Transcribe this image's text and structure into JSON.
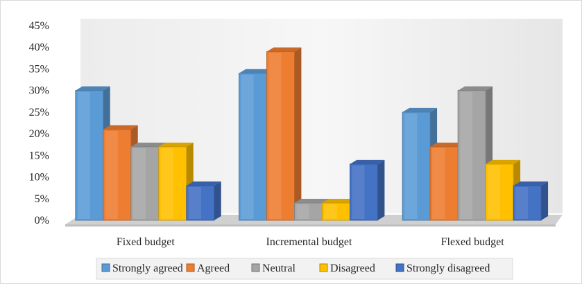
{
  "chart_data": {
    "type": "bar",
    "title": "",
    "xlabel": "",
    "ylabel": "",
    "ylim": [
      0,
      45
    ],
    "y_ticks": [
      "0%",
      "5%",
      "10%",
      "15%",
      "20%",
      "25%",
      "30%",
      "35%",
      "40%",
      "45%"
    ],
    "categories": [
      "Fixed budget",
      "Incremental budget",
      "Flexed budget"
    ],
    "series": [
      {
        "name": "Strongly agreed",
        "values": [
          30,
          34,
          25
        ],
        "color": "#5b9bd5"
      },
      {
        "name": "Agreed",
        "values": [
          21,
          39,
          17
        ],
        "color": "#ed7d31"
      },
      {
        "name": "Neutral",
        "values": [
          17,
          4,
          30
        ],
        "color": "#a5a5a5"
      },
      {
        "name": "Disagreed",
        "values": [
          17,
          4,
          13
        ],
        "color": "#ffc000"
      },
      {
        "name": "Strongly disagreed",
        "values": [
          8,
          13,
          8
        ],
        "color": "#4472c4"
      }
    ],
    "grid": false,
    "legend_position": "bottom",
    "style": "3d-column"
  }
}
